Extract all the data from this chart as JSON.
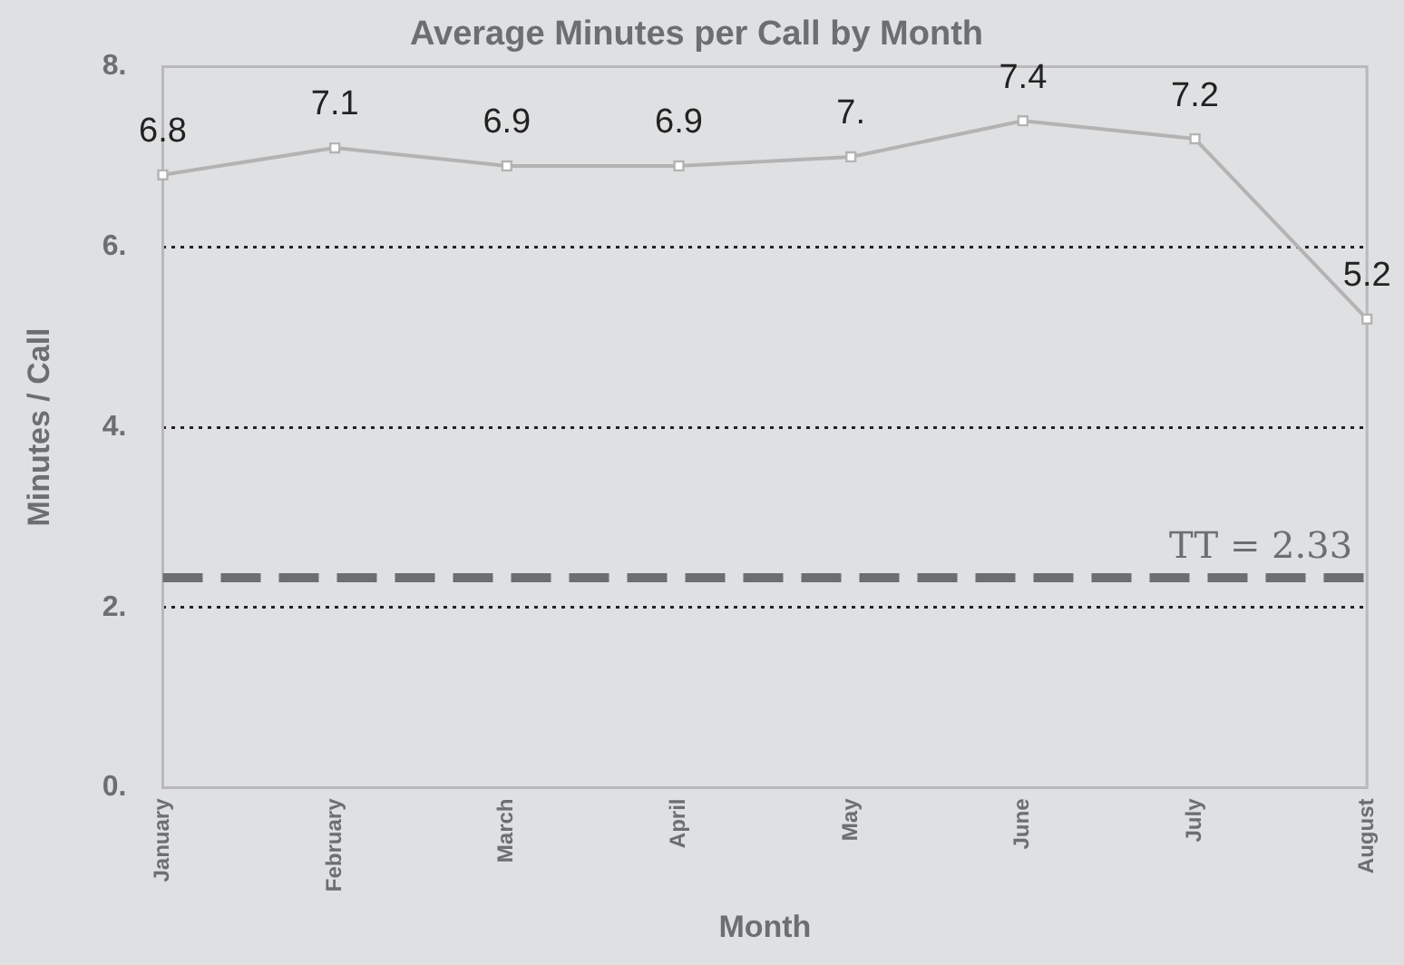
{
  "chart_data": {
    "type": "line",
    "title": "Average Minutes per Call by Month",
    "xlabel": "Month",
    "ylabel": "Minutes / Call",
    "categories": [
      "January",
      "February",
      "March",
      "April",
      "May",
      "June",
      "July",
      "August"
    ],
    "series": [
      {
        "color": "#b3b3b3",
        "values": [
          6.8,
          7.1,
          6.9,
          6.9,
          7.0,
          7.4,
          7.2,
          5.2
        ],
        "value_labels": [
          "6.8",
          "7.1",
          "6.9",
          "6.9",
          "7.",
          "7.4",
          "7.2",
          "5.2"
        ]
      }
    ],
    "ylim": [
      0,
      8
    ],
    "yticks": [
      {
        "value": 0,
        "label": "0."
      },
      {
        "value": 2,
        "label": "2."
      },
      {
        "value": 4,
        "label": "4."
      },
      {
        "value": 6,
        "label": "6."
      },
      {
        "value": 8,
        "label": "8."
      }
    ],
    "ref_lines": [
      {
        "axis": "y",
        "value": 2.33,
        "label": "TT = 2.33",
        "color": "#6d6e71",
        "line_style": "dashed"
      }
    ],
    "grid": "y",
    "legend": false,
    "marker": "square",
    "line_style": "solid"
  }
}
